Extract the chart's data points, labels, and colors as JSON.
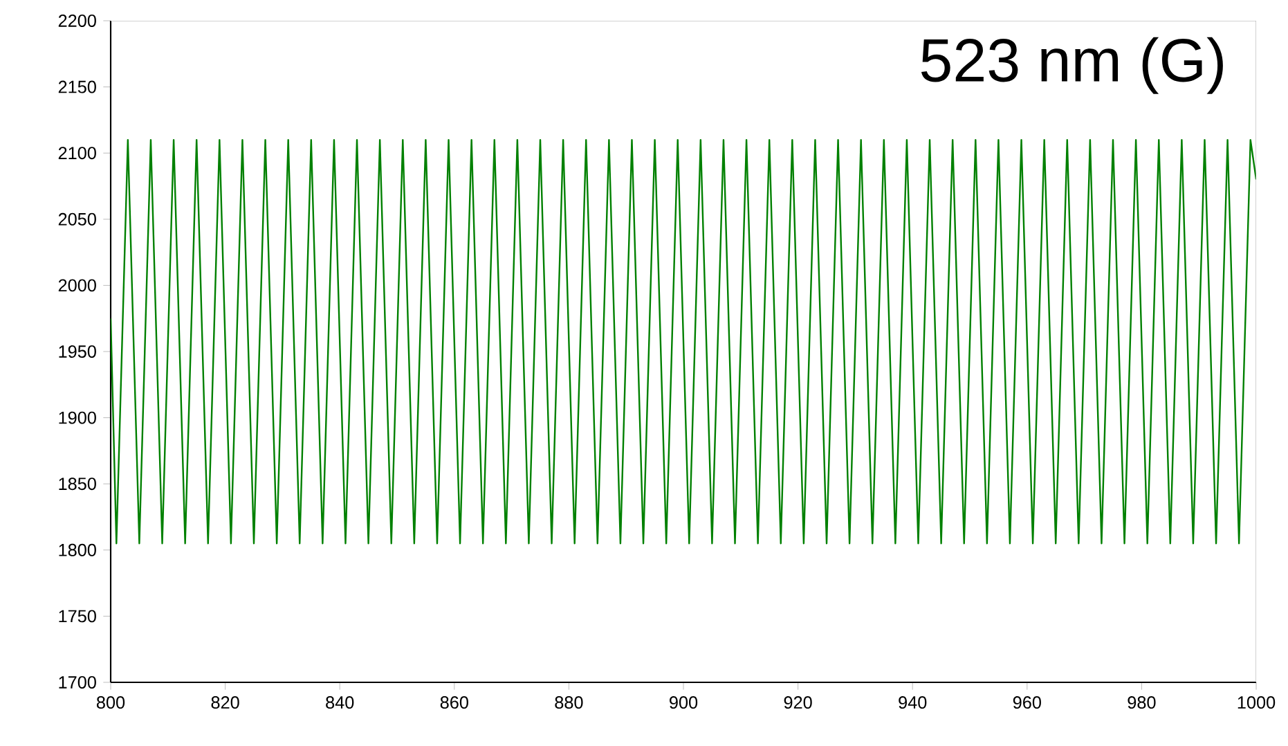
{
  "chart_data": {
    "type": "line",
    "title": "523 nm (G)",
    "xlim": [
      800,
      1000
    ],
    "ylim": [
      1700,
      2200
    ],
    "xticks": [
      800,
      820,
      840,
      860,
      880,
      900,
      920,
      940,
      960,
      980,
      1000
    ],
    "yticks": [
      1700,
      1750,
      1800,
      1850,
      1900,
      1950,
      2000,
      2050,
      2100,
      2150,
      2200
    ],
    "grid": false,
    "marker": "none",
    "line_style": "solid",
    "series": [
      {
        "color": "#008000",
        "x": [
          800,
          801,
          803,
          805,
          807,
          809,
          811,
          813,
          815,
          817,
          819,
          821,
          823,
          825,
          827,
          829,
          831,
          833,
          835,
          837,
          839,
          841,
          843,
          845,
          847,
          849,
          851,
          853,
          855,
          857,
          859,
          861,
          863,
          865,
          867,
          869,
          871,
          873,
          875,
          877,
          879,
          881,
          883,
          885,
          887,
          889,
          891,
          893,
          895,
          897,
          899,
          901,
          903,
          905,
          907,
          909,
          911,
          913,
          915,
          917,
          919,
          921,
          923,
          925,
          927,
          929,
          931,
          933,
          935,
          937,
          939,
          941,
          943,
          945,
          947,
          949,
          951,
          953,
          955,
          957,
          959,
          961,
          963,
          965,
          967,
          969,
          971,
          973,
          975,
          977,
          979,
          981,
          983,
          985,
          987,
          989,
          991,
          993,
          995,
          997,
          999,
          1000
        ],
        "values": [
          1975,
          1805,
          2110,
          1805,
          2110,
          1805,
          2110,
          1805,
          2110,
          1805,
          2110,
          1805,
          2110,
          1805,
          2110,
          1805,
          2110,
          1805,
          2110,
          1805,
          2110,
          1805,
          2110,
          1805,
          2110,
          1805,
          2110,
          1805,
          2110,
          1805,
          2110,
          1805,
          2110,
          1805,
          2110,
          1805,
          2110,
          1805,
          2110,
          1805,
          2110,
          1805,
          2110,
          1805,
          2110,
          1805,
          2110,
          1805,
          2110,
          1805,
          2110,
          1805,
          2110,
          1805,
          2110,
          1805,
          2110,
          1805,
          2110,
          1805,
          2110,
          1805,
          2110,
          1805,
          2110,
          1805,
          2110,
          1805,
          2110,
          1805,
          2110,
          1805,
          2110,
          1805,
          2110,
          1805,
          2110,
          1805,
          2110,
          1805,
          2110,
          1805,
          2110,
          1805,
          2110,
          1805,
          2110,
          1805,
          2110,
          1805,
          2110,
          1805,
          2110,
          1805,
          2110,
          1805,
          2110,
          1805,
          2110,
          1805,
          2110,
          2080
        ]
      }
    ]
  }
}
